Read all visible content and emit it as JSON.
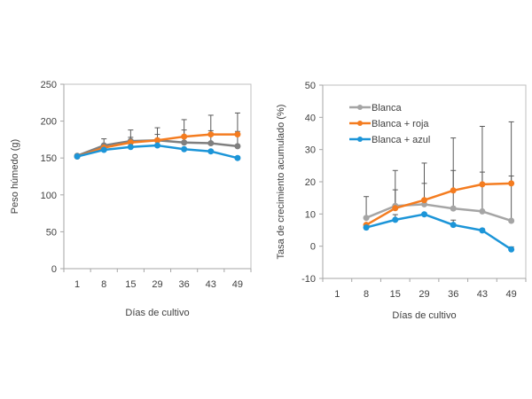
{
  "chart_data": [
    {
      "type": "line",
      "title": "",
      "xlabel": "Días de cultivo",
      "ylabel": "Peso húmedo (g)",
      "categories": [
        "1",
        "8",
        "15",
        "29",
        "36",
        "43",
        "49"
      ],
      "ylim": [
        0,
        250
      ],
      "yticks": [
        0,
        50,
        100,
        150,
        200,
        250
      ],
      "grid": false,
      "legend": null,
      "series": [
        {
          "name": "Blanca",
          "color": "#7f7f7f",
          "values": [
            153,
            167,
            173,
            174,
            171,
            170,
            166
          ],
          "error_upper": [
            null,
            176,
            178,
            182,
            188,
            187,
            186
          ]
        },
        {
          "name": "Blanca + roja",
          "color": "#f47c20",
          "values": [
            152,
            164,
            171,
            174,
            179,
            182,
            182
          ],
          "error_upper": [
            null,
            null,
            188,
            191,
            202,
            208,
            211
          ]
        },
        {
          "name": "Blanca + azul",
          "color": "#1c95d8",
          "values": [
            152,
            161,
            165,
            167,
            162,
            159,
            150
          ],
          "error_upper": [
            null,
            null,
            null,
            null,
            null,
            null,
            152
          ]
        }
      ]
    },
    {
      "type": "line",
      "title": "",
      "xlabel": "Días de cultivo",
      "ylabel": "Tasa de crecimiento acumulado (%)",
      "categories": [
        "1",
        "8",
        "15",
        "29",
        "36",
        "43",
        "49"
      ],
      "ylim": [
        -10,
        50
      ],
      "yticks": [
        -10,
        0,
        10,
        20,
        30,
        40,
        50
      ],
      "grid": false,
      "legend": "top-left",
      "series": [
        {
          "name": "Blanca",
          "color": "#a5a5a5",
          "values": [
            null,
            8.8,
            12.5,
            13.0,
            11.7,
            10.8,
            7.9
          ],
          "error_upper": [
            null,
            15.4,
            17.5,
            19.5,
            23.5,
            23.0,
            21.8
          ]
        },
        {
          "name": "Blanca + roja",
          "color": "#f47c20",
          "values": [
            null,
            6.6,
            11.8,
            14.3,
            17.3,
            19.2,
            19.5
          ],
          "error_upper": [
            null,
            null,
            23.5,
            25.8,
            33.6,
            37.2,
            38.6
          ]
        },
        {
          "name": "Blanca + azul",
          "color": "#1c95d8",
          "values": [
            null,
            5.8,
            8.2,
            9.9,
            6.6,
            4.9,
            -1.0
          ],
          "error_upper": [
            null,
            null,
            9.8,
            null,
            8.1,
            5.4,
            -0.2
          ]
        }
      ]
    }
  ]
}
